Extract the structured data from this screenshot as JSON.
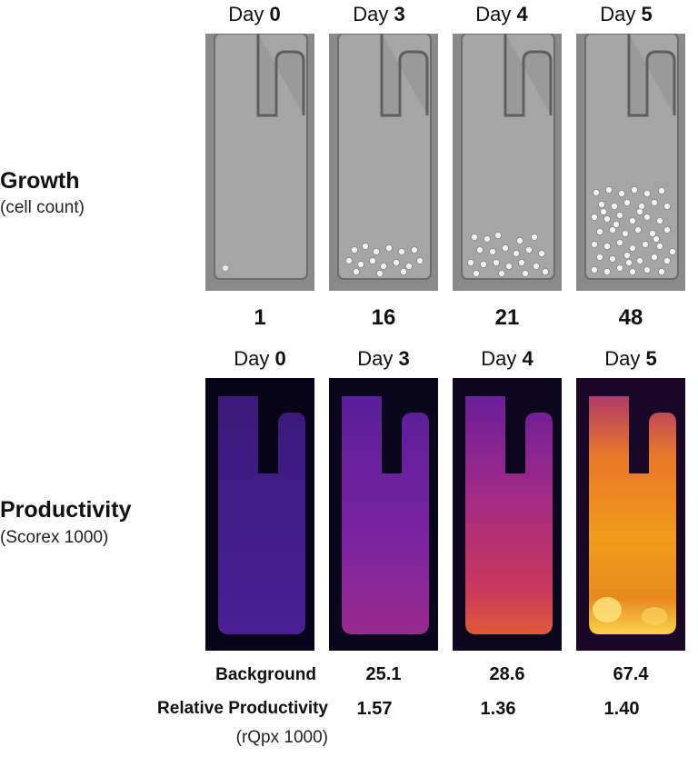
{
  "days": [
    {
      "prefix": "Day ",
      "num": "0"
    },
    {
      "prefix": "Day ",
      "num": "3"
    },
    {
      "prefix": "Day ",
      "num": "4"
    },
    {
      "prefix": "Day ",
      "num": "5"
    }
  ],
  "growth": {
    "title": "Growth",
    "subtitle": "(cell count)",
    "counts": [
      "1",
      "16",
      "21",
      "48"
    ]
  },
  "productivity": {
    "title": "Productivity",
    "subtitle": "(Scorex 1000)",
    "fluor_levels": [
      0.1,
      0.35,
      0.55,
      0.95
    ]
  },
  "table": {
    "background_label": "Background",
    "background_values": [
      "25.1",
      "28.6",
      "67.4"
    ],
    "rel_label": "Relative Productivity",
    "rel_sub": "(rQpx 1000)",
    "rel_values": [
      "1.57",
      "1.36",
      "1.40"
    ]
  }
}
